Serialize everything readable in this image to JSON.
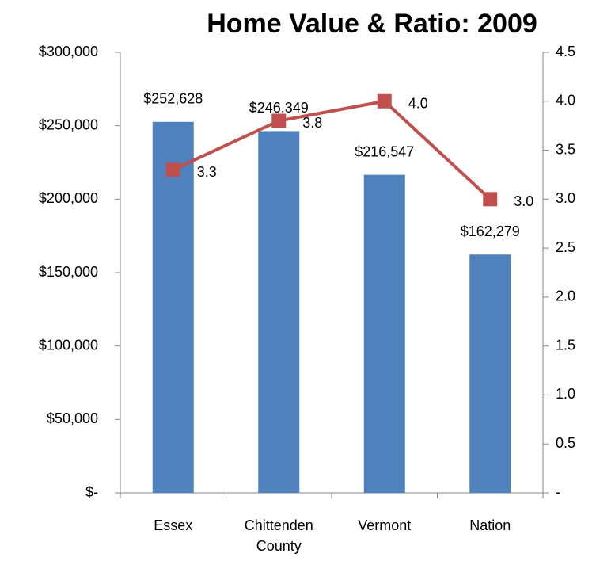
{
  "chart_data": {
    "type": "bar_line",
    "title": "Home Value & Ratio: 2009",
    "categories": [
      "Essex",
      "Chittenden County",
      "Vermont",
      "Nation"
    ],
    "series": [
      {
        "name": "Home Value",
        "color": "#4f81bd",
        "type": "bar",
        "values": [
          252628,
          246349,
          216547,
          162279
        ],
        "value_labels": [
          "$252,628",
          "$246,349",
          "$216,547",
          "$162,279"
        ]
      },
      {
        "name": "Ratio",
        "color": "#c0504d",
        "type": "line",
        "axis": "y2",
        "values": [
          3.3,
          3.8,
          4.0,
          3.0
        ],
        "value_labels": [
          "3.3",
          "3.8",
          "4.0",
          "3.0"
        ]
      }
    ],
    "ylim": [
      0,
      300000
    ],
    "yticks": [
      {
        "value": 0,
        "label": "$-"
      },
      {
        "value": 50000,
        "label": "$50,000"
      },
      {
        "value": 100000,
        "label": "$100,000"
      },
      {
        "value": 150000,
        "label": "$150,000"
      },
      {
        "value": 200000,
        "label": "$200,000"
      },
      {
        "value": 250000,
        "label": "$250,000"
      },
      {
        "value": 300000,
        "label": "$300,000"
      }
    ],
    "y2lim": [
      0,
      4.5
    ],
    "y2ticks": [
      {
        "value": 0,
        "label": "-"
      },
      {
        "value": 0.5,
        "label": "0.5"
      },
      {
        "value": 1,
        "label": "1.0"
      },
      {
        "value": 1.5,
        "label": "1.5"
      },
      {
        "value": 2,
        "label": "2.0"
      },
      {
        "value": 2.5,
        "label": "2.5"
      },
      {
        "value": 3,
        "label": "3.0"
      },
      {
        "value": 3.5,
        "label": "3.5"
      },
      {
        "value": 4,
        "label": "4.0"
      },
      {
        "value": 4.5,
        "label": "4.5"
      }
    ],
    "grid": false
  }
}
